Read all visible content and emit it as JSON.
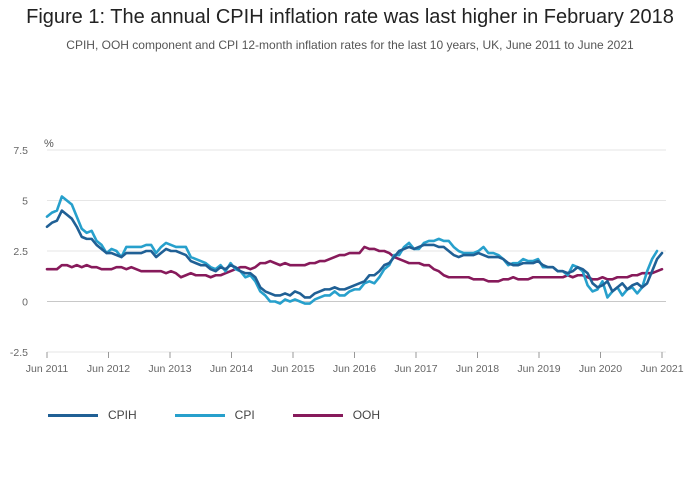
{
  "title": "Figure 1: The annual CPIH inflation rate was last higher in February 2018",
  "subtitle": "CPIH, OOH component and CPI 12-month inflation rates for the last 10 years, UK, June 2011 to June 2021",
  "chart_data": {
    "type": "line",
    "unit_label": "%",
    "ylim": [
      -2.5,
      7.5
    ],
    "yticks": [
      -2.5,
      0,
      2.5,
      5,
      7.5
    ],
    "ytick_labels": [
      "-2.5",
      "0",
      "2.5",
      "5",
      "7.5"
    ],
    "x_start": "Jun 2011",
    "x_end": "Jun 2021",
    "xtick_labels": [
      "Jun 2011",
      "Jun 2012",
      "Jun 2013",
      "Jun 2014",
      "Jun 2015",
      "Jun 2016",
      "Jun 2017",
      "Jun 2018",
      "Jun 2019",
      "Jun 2020",
      "Jun 2021"
    ],
    "grid": true,
    "legend": "bottom-left",
    "series": [
      {
        "name": "CPIH",
        "color": "#206095",
        "values": [
          3.7,
          3.9,
          4.0,
          4.5,
          4.3,
          4.1,
          3.7,
          3.2,
          3.1,
          3.1,
          2.8,
          2.6,
          2.4,
          2.4,
          2.3,
          2.2,
          2.4,
          2.4,
          2.4,
          2.4,
          2.5,
          2.5,
          2.2,
          2.4,
          2.6,
          2.5,
          2.5,
          2.4,
          2.3,
          2.0,
          1.9,
          1.8,
          1.8,
          1.6,
          1.5,
          1.7,
          1.6,
          1.8,
          1.7,
          1.5,
          1.4,
          1.4,
          1.2,
          0.7,
          0.5,
          0.4,
          0.3,
          0.3,
          0.4,
          0.3,
          0.5,
          0.4,
          0.2,
          0.2,
          0.4,
          0.5,
          0.6,
          0.6,
          0.7,
          0.6,
          0.6,
          0.7,
          0.8,
          0.9,
          1.0,
          1.3,
          1.3,
          1.5,
          1.8,
          1.9,
          2.2,
          2.5,
          2.6,
          2.7,
          2.6,
          2.7,
          2.8,
          2.8,
          2.8,
          2.7,
          2.7,
          2.5,
          2.3,
          2.2,
          2.3,
          2.3,
          2.3,
          2.4,
          2.3,
          2.2,
          2.2,
          2.2,
          2.1,
          1.9,
          1.8,
          1.8,
          1.9,
          1.9,
          1.9,
          2.0,
          1.8,
          1.7,
          1.7,
          1.5,
          1.5,
          1.4,
          1.5,
          1.7,
          1.6,
          1.4,
          0.9,
          0.7,
          0.8,
          1.0,
          0.5,
          0.7,
          0.9,
          0.6,
          0.8,
          0.9,
          0.7,
          0.9,
          1.5,
          2.1,
          2.4
        ]
      },
      {
        "name": "CPI",
        "color": "#27a0cc",
        "values": [
          4.2,
          4.4,
          4.5,
          5.2,
          5.0,
          4.8,
          4.2,
          3.6,
          3.4,
          3.5,
          3.0,
          2.8,
          2.4,
          2.6,
          2.5,
          2.2,
          2.7,
          2.7,
          2.7,
          2.7,
          2.8,
          2.8,
          2.4,
          2.7,
          2.9,
          2.8,
          2.7,
          2.7,
          2.7,
          2.2,
          2.1,
          2.0,
          1.9,
          1.7,
          1.6,
          1.8,
          1.5,
          1.9,
          1.6,
          1.5,
          1.2,
          1.3,
          1.0,
          0.5,
          0.3,
          0.0,
          0.0,
          -0.1,
          0.1,
          0.0,
          0.1,
          0.0,
          -0.1,
          -0.1,
          0.1,
          0.2,
          0.3,
          0.3,
          0.5,
          0.3,
          0.3,
          0.5,
          0.6,
          0.6,
          0.9,
          1.0,
          0.9,
          1.2,
          1.6,
          1.8,
          2.3,
          2.3,
          2.7,
          2.9,
          2.6,
          2.6,
          2.9,
          3.0,
          3.0,
          3.1,
          3.0,
          3.0,
          2.7,
          2.5,
          2.4,
          2.4,
          2.4,
          2.5,
          2.7,
          2.4,
          2.4,
          2.3,
          2.1,
          1.8,
          1.9,
          1.9,
          2.1,
          2.0,
          2.0,
          2.1,
          1.7,
          1.7,
          1.7,
          1.5,
          1.5,
          1.3,
          1.8,
          1.7,
          1.5,
          0.8,
          0.5,
          0.6,
          1.0,
          0.2,
          0.5,
          0.7,
          0.3,
          0.6,
          0.7,
          0.4,
          0.7,
          1.5,
          2.1,
          2.5
        ]
      },
      {
        "name": "OOH",
        "color": "#871a5b",
        "values": [
          1.6,
          1.6,
          1.6,
          1.8,
          1.8,
          1.7,
          1.8,
          1.7,
          1.8,
          1.7,
          1.7,
          1.6,
          1.6,
          1.6,
          1.7,
          1.7,
          1.6,
          1.7,
          1.6,
          1.5,
          1.5,
          1.5,
          1.5,
          1.5,
          1.4,
          1.5,
          1.4,
          1.2,
          1.3,
          1.4,
          1.3,
          1.3,
          1.3,
          1.2,
          1.3,
          1.3,
          1.4,
          1.5,
          1.6,
          1.7,
          1.7,
          1.6,
          1.7,
          1.9,
          1.9,
          2.0,
          1.9,
          1.8,
          1.9,
          1.8,
          1.8,
          1.8,
          1.8,
          1.9,
          1.9,
          2.0,
          2.0,
          2.1,
          2.2,
          2.3,
          2.3,
          2.4,
          2.4,
          2.4,
          2.7,
          2.6,
          2.6,
          2.5,
          2.5,
          2.4,
          2.2,
          2.1,
          2.0,
          1.9,
          1.9,
          1.9,
          1.8,
          1.8,
          1.6,
          1.5,
          1.3,
          1.2,
          1.2,
          1.2,
          1.2,
          1.2,
          1.1,
          1.1,
          1.1,
          1.0,
          1.0,
          1.0,
          1.1,
          1.1,
          1.2,
          1.1,
          1.1,
          1.1,
          1.2,
          1.2,
          1.2,
          1.2,
          1.2,
          1.2,
          1.2,
          1.3,
          1.2,
          1.3,
          1.3,
          1.2,
          1.1,
          1.1,
          1.2,
          1.1,
          1.1,
          1.2,
          1.2,
          1.2,
          1.3,
          1.3,
          1.4,
          1.4,
          1.4,
          1.5,
          1.6
        ]
      }
    ]
  }
}
